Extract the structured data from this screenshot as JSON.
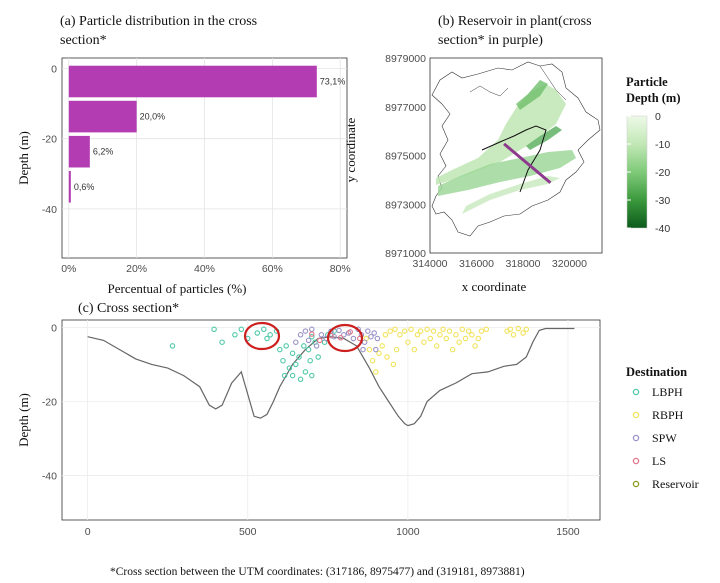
{
  "chart_data": [
    {
      "type": "bar",
      "title": "(a) Particle distribution in the cross section*",
      "title_lines": [
        "(a) Particle distribution in the cross",
        "section*"
      ],
      "xlabel": "Percentual of particles (%)",
      "ylabel": "Depth (m)",
      "orientation": "horizontal",
      "categories": [
        0,
        -10,
        -20,
        -30
      ],
      "values": [
        73.1,
        20.0,
        6.2,
        0.6
      ],
      "data_labels": [
        "73,1%",
        "20,0%",
        "6,2%",
        "0,6%"
      ],
      "xlim": [
        -2,
        82
      ],
      "ylim": [
        -54,
        3
      ],
      "xticks": [
        0,
        20,
        40,
        60,
        80
      ],
      "xtick_labels": [
        "0%",
        "20%",
        "40%",
        "60%",
        "80%"
      ],
      "yticks": [
        0,
        -20,
        -40
      ],
      "ytick_labels": [
        "0",
        "-20",
        "-40"
      ],
      "bar_color": "#b33cb3",
      "grid": true
    },
    {
      "type": "map",
      "title": "(b) Reservoir in plant(cross section* in purple)",
      "title_lines": [
        "(b) Reservoir in plant(cross",
        "section* in purple)"
      ],
      "xlabel": "x coordinate",
      "ylabel": "y coordinate",
      "xlim": [
        314000,
        321400
      ],
      "ylim": [
        8971000,
        8979000
      ],
      "xticks": [
        314000,
        316000,
        318000,
        320000
      ],
      "xtick_labels": [
        "314000",
        "316000",
        "318000",
        "320000"
      ],
      "yticks": [
        8971000,
        8973000,
        8975000,
        8977000,
        8979000
      ],
      "ytick_labels": [
        "8971000",
        "8973000",
        "8975000",
        "8977000",
        "8979000"
      ],
      "cross_section": {
        "start": [
          317186,
          8975477
        ],
        "end": [
          319181,
          8973881
        ],
        "color": "#8e3a8e"
      },
      "colorbar": {
        "title_lines": [
          "Particle",
          "Depth (m)"
        ],
        "ticks": [
          0,
          -10,
          -20,
          -30,
          -40
        ],
        "tick_labels": [
          "0",
          "-10",
          "-20",
          "-30",
          "-40"
        ],
        "colors": [
          "#eef9e8",
          "#c2e8b6",
          "#7fca79",
          "#3c9a3d",
          "#0b5a1c"
        ]
      }
    },
    {
      "type": "scatter",
      "title": "(c) Cross section*",
      "ylabel": "Depth (m)",
      "xlim": [
        -80,
        1600
      ],
      "ylim": [
        -52,
        2
      ],
      "xticks": [
        0,
        500,
        1000,
        1500
      ],
      "xtick_labels": [
        "0",
        "500",
        "1000",
        "1500"
      ],
      "yticks": [
        0,
        -20,
        -40
      ],
      "ytick_labels": [
        "0",
        "-20",
        "-40"
      ],
      "grid": true,
      "bathymetry": {
        "color": "#666666",
        "x": [
          0,
          50,
          100,
          150,
          200,
          250,
          300,
          350,
          380,
          400,
          420,
          450,
          480,
          500,
          520,
          540,
          560,
          580,
          600,
          640,
          680,
          720,
          760,
          800,
          840,
          880,
          910,
          940,
          970,
          990,
          1000,
          1020,
          1040,
          1060,
          1100,
          1150,
          1200,
          1250,
          1300,
          1340,
          1370,
          1390,
          1410,
          1430,
          1450,
          1470,
          1500,
          1520
        ],
        "y": [
          -2.5,
          -3.5,
          -6,
          -8.5,
          -10,
          -11,
          -13,
          -16,
          -21,
          -22,
          -21,
          -15,
          -12,
          -18,
          -24,
          -24.5,
          -23.5,
          -20,
          -16,
          -10,
          -6,
          -3,
          -2.5,
          -3,
          -5,
          -11,
          -16,
          -20,
          -24,
          -26,
          -26.5,
          -26,
          -24,
          -20,
          -17,
          -15,
          -12.5,
          -12,
          -10.5,
          -10,
          -8,
          -4,
          -0.8,
          -0.3,
          -0.3,
          -0.3,
          -0.3,
          -0.3
        ]
      },
      "series": [
        {
          "name": "LBPH",
          "color": "#4fc9a8",
          "points": [
            [
              265,
              -5
            ],
            [
              395,
              -0.5
            ],
            [
              420,
              -4
            ],
            [
              460,
              -2
            ],
            [
              480,
              -0.5
            ],
            [
              500,
              -3
            ],
            [
              530,
              -1.5
            ],
            [
              550,
              -0.5
            ],
            [
              570,
              -2
            ],
            [
              590,
              -1
            ],
            [
              560,
              -3
            ],
            [
              600,
              -6
            ],
            [
              610,
              -9
            ],
            [
              615,
              -13
            ],
            [
              630,
              -11
            ],
            [
              640,
              -13
            ],
            [
              650,
              -10
            ],
            [
              660,
              -8
            ],
            [
              665,
              -14
            ],
            [
              680,
              -12
            ],
            [
              690,
              -6
            ],
            [
              695,
              -9
            ],
            [
              700,
              -13
            ],
            [
              710,
              -4
            ],
            [
              720,
              -8
            ],
            [
              740,
              -4
            ],
            [
              750,
              -2
            ],
            [
              770,
              -1
            ],
            [
              700,
              -2.5
            ],
            [
              675,
              -5
            ],
            [
              640,
              -7
            ],
            [
              620,
              -5
            ]
          ]
        },
        {
          "name": "RBPH",
          "color": "#f2e35a",
          "points": [
            [
              870,
              -3
            ],
            [
              880,
              -6
            ],
            [
              890,
              -9
            ],
            [
              900,
              -12
            ],
            [
              910,
              -7
            ],
            [
              920,
              -5
            ],
            [
              930,
              -2
            ],
            [
              945,
              -1
            ],
            [
              960,
              -0.5
            ],
            [
              975,
              -2
            ],
            [
              990,
              -1
            ],
            [
              1000,
              -4
            ],
            [
              1010,
              -0.5
            ],
            [
              1020,
              -6
            ],
            [
              1030,
              -2
            ],
            [
              1040,
              -1
            ],
            [
              1050,
              -4
            ],
            [
              1060,
              -0.5
            ],
            [
              1070,
              -3
            ],
            [
              1080,
              -1
            ],
            [
              1090,
              -5
            ],
            [
              1100,
              -2
            ],
            [
              1110,
              -0.5
            ],
            [
              1120,
              -3
            ],
            [
              1130,
              -1
            ],
            [
              1140,
              -6
            ],
            [
              1150,
              -2
            ],
            [
              1160,
              -4
            ],
            [
              1170,
              -0.5
            ],
            [
              1180,
              -3
            ],
            [
              1190,
              -1
            ],
            [
              1200,
              -2
            ],
            [
              1210,
              -5
            ],
            [
              1220,
              -3
            ],
            [
              1230,
              -1
            ],
            [
              1245,
              -0.5
            ],
            [
              1310,
              -1
            ],
            [
              1320,
              -0.5
            ],
            [
              1330,
              -2
            ],
            [
              1345,
              -0.3
            ],
            [
              1360,
              -1.5
            ],
            [
              1370,
              -0.5
            ],
            [
              935,
              -8
            ],
            [
              955,
              -10
            ],
            [
              965,
              -6
            ]
          ]
        },
        {
          "name": "SPW",
          "color": "#9a93c7",
          "points": [
            [
              650,
              -4
            ],
            [
              665,
              -2
            ],
            [
              680,
              -1
            ],
            [
              690,
              -3.5
            ],
            [
              700,
              -0.5
            ],
            [
              715,
              -5
            ],
            [
              730,
              -2
            ],
            [
              745,
              -3
            ],
            [
              760,
              -1
            ],
            [
              770,
              -2.5
            ],
            [
              785,
              -0.8
            ],
            [
              800,
              -2
            ],
            [
              815,
              -1.5
            ],
            [
              830,
              -3
            ],
            [
              845,
              -0.5
            ],
            [
              855,
              -2
            ],
            [
              865,
              -4
            ],
            [
              875,
              -1
            ],
            [
              885,
              -2.5
            ],
            [
              895,
              -1.5
            ],
            [
              905,
              -3
            ],
            [
              860,
              -6
            ],
            [
              900,
              -6
            ]
          ]
        },
        {
          "name": "LS",
          "color": "#e0758a",
          "points": [
            [
              700,
              -1.8
            ],
            [
              725,
              -3.5
            ],
            [
              760,
              -2.2
            ],
            [
              790,
              -2.8
            ],
            [
              820,
              -1.2
            ],
            [
              850,
              -3
            ]
          ]
        },
        {
          "name": "Reservoir",
          "color": "#8a9a1a",
          "points": []
        }
      ],
      "legend": {
        "title": "Destination",
        "placement": "right"
      }
    }
  ],
  "footnote": "*Cross section between the UTM coordinates: (317186, 8975477) and (319181, 8973881)"
}
